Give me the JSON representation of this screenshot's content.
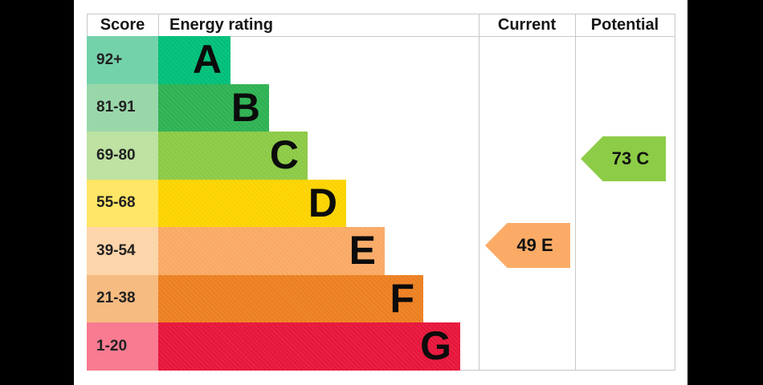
{
  "chart_data": {
    "type": "bar",
    "title": "Energy rating (EPC)",
    "columns": [
      "Score",
      "Energy rating",
      "Current",
      "Potential"
    ],
    "bands": [
      {
        "score_range": "92+",
        "rating": "A"
      },
      {
        "score_range": "81-91",
        "rating": "B"
      },
      {
        "score_range": "69-80",
        "rating": "C"
      },
      {
        "score_range": "55-68",
        "rating": "D"
      },
      {
        "score_range": "39-54",
        "rating": "E"
      },
      {
        "score_range": "21-38",
        "rating": "F"
      },
      {
        "score_range": "1-20",
        "rating": "G"
      }
    ],
    "current": {
      "score": 49,
      "rating": "E"
    },
    "potential": {
      "score": 73,
      "rating": "C"
    }
  },
  "header": {
    "score": "Score",
    "energy_rating": "Energy rating",
    "current": "Current",
    "potential": "Potential"
  },
  "bands": [
    {
      "score": "92+",
      "letter": "A",
      "bar_color": "#00c17a",
      "cell_color": "#74d2ab"
    },
    {
      "score": "81-91",
      "letter": "B",
      "bar_color": "#2eb353",
      "cell_color": "#99d7a9"
    },
    {
      "score": "69-80",
      "letter": "C",
      "bar_color": "#8dcc46",
      "cell_color": "#bde2a2"
    },
    {
      "score": "55-68",
      "letter": "D",
      "bar_color": "#ffd500",
      "cell_color": "#ffe666"
    },
    {
      "score": "39-54",
      "letter": "E",
      "bar_color": "#fcab66",
      "cell_color": "#fdd5aa"
    },
    {
      "score": "21-38",
      "letter": "F",
      "bar_color": "#ef8122",
      "cell_color": "#f6bb81"
    },
    {
      "score": "1-20",
      "letter": "G",
      "bar_color": "#e9153b",
      "cell_color": "#f87b91"
    }
  ],
  "current_arrow": {
    "label": "49 E",
    "color": "#fcab66"
  },
  "potential_arrow": {
    "label": "73 C",
    "color": "#8dcc46"
  }
}
